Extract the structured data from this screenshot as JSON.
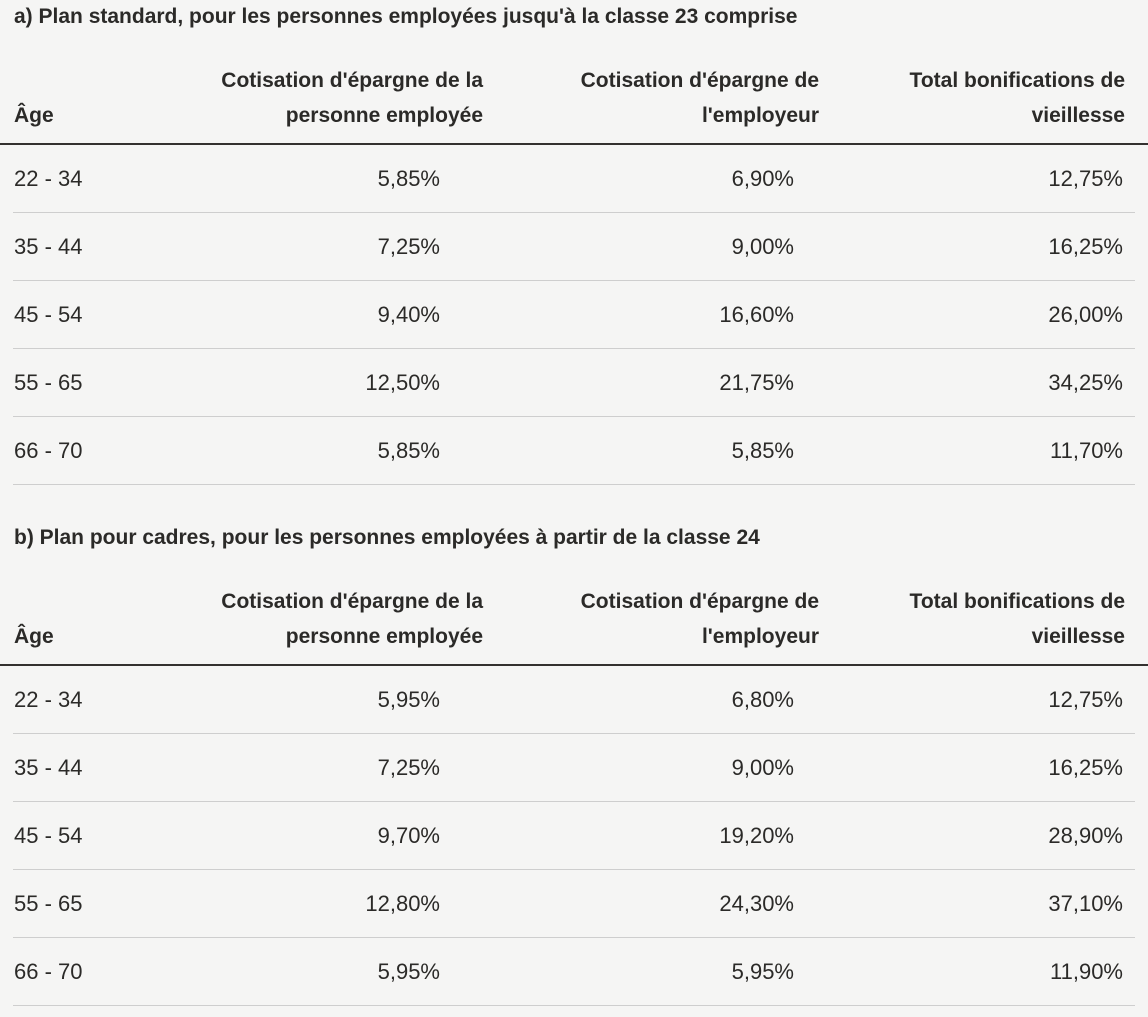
{
  "page": {
    "background": "#f5f5f4",
    "text_color": "#2b2a28",
    "divider_color": "#cecece",
    "header_rule_color": "#33312f"
  },
  "plans": [
    {
      "title": "a) Plan standard, pour les personnes employées jusqu'à la classe 23 comprise",
      "columns": [
        "Âge",
        "Cotisation d'épargne de la\npersonne employée",
        "Cotisation d'épargne de\nl'employeur",
        "Total bonifications de\nvieillesse"
      ],
      "rows": [
        [
          "22 - 34",
          "5,85%",
          "6,90%",
          "12,75%"
        ],
        [
          "35 - 44",
          "7,25%",
          "9,00%",
          "16,25%"
        ],
        [
          "45 - 54",
          "9,40%",
          "16,60%",
          "26,00%"
        ],
        [
          "55 - 65",
          "12,50%",
          "21,75%",
          "34,25%"
        ],
        [
          "66 - 70",
          "5,85%",
          "5,85%",
          "11,70%"
        ]
      ]
    },
    {
      "title": "b) Plan pour cadres, pour les personnes employées à partir de la classe 24",
      "columns": [
        "Âge",
        "Cotisation d'épargne de la\npersonne employée",
        "Cotisation d'épargne de\nl'employeur",
        "Total bonifications de\nvieillesse"
      ],
      "rows": [
        [
          "22 - 34",
          "5,95%",
          "6,80%",
          "12,75%"
        ],
        [
          "35 - 44",
          "7,25%",
          "9,00%",
          "16,25%"
        ],
        [
          "45 - 54",
          "9,70%",
          "19,20%",
          "28,90%"
        ],
        [
          "55 - 65",
          "12,80%",
          "24,30%",
          "37,10%"
        ],
        [
          "66 - 70",
          "5,95%",
          "5,95%",
          "11,90%"
        ]
      ]
    }
  ]
}
